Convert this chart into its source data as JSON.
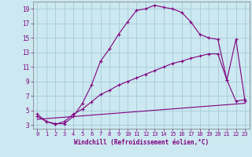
{
  "xlabel": "Windchill (Refroidissement éolien,°C)",
  "background_color": "#cce8f0",
  "grid_color": "#aacfdb",
  "line_color": "#800080",
  "xlim": [
    -0.5,
    23.5
  ],
  "ylim": [
    2.5,
    20
  ],
  "xticks": [
    0,
    1,
    2,
    3,
    4,
    5,
    6,
    7,
    8,
    9,
    10,
    11,
    12,
    13,
    14,
    15,
    16,
    17,
    18,
    19,
    20,
    21,
    22,
    23
  ],
  "yticks": [
    3,
    5,
    7,
    9,
    11,
    13,
    15,
    17,
    19
  ],
  "curve1_x": [
    0,
    1,
    2,
    3,
    4,
    5,
    6,
    7,
    8,
    9,
    10,
    11,
    12,
    13,
    14,
    15,
    16,
    17,
    18,
    19,
    20,
    21,
    22,
    23
  ],
  "curve1_y": [
    4.5,
    3.5,
    3.2,
    3.2,
    4.2,
    6.0,
    8.5,
    11.8,
    13.5,
    15.5,
    17.2,
    18.8,
    19.0,
    19.5,
    19.2,
    19.0,
    18.5,
    17.2,
    15.5,
    15.0,
    14.8,
    9.2,
    14.8,
    6.3
  ],
  "curve2_x": [
    0,
    1,
    2,
    3,
    4,
    5,
    6,
    7,
    8,
    9,
    10,
    11,
    12,
    13,
    14,
    15,
    16,
    17,
    18,
    19,
    20,
    21,
    22,
    23
  ],
  "curve2_y": [
    4.2,
    3.5,
    3.1,
    3.5,
    4.5,
    5.2,
    6.2,
    7.2,
    7.8,
    8.5,
    9.0,
    9.5,
    10.0,
    10.5,
    11.0,
    11.5,
    11.8,
    12.2,
    12.5,
    12.8,
    12.8,
    9.2,
    6.3,
    6.5
  ],
  "line_x": [
    0,
    23
  ],
  "line_y": [
    3.8,
    6.0
  ]
}
